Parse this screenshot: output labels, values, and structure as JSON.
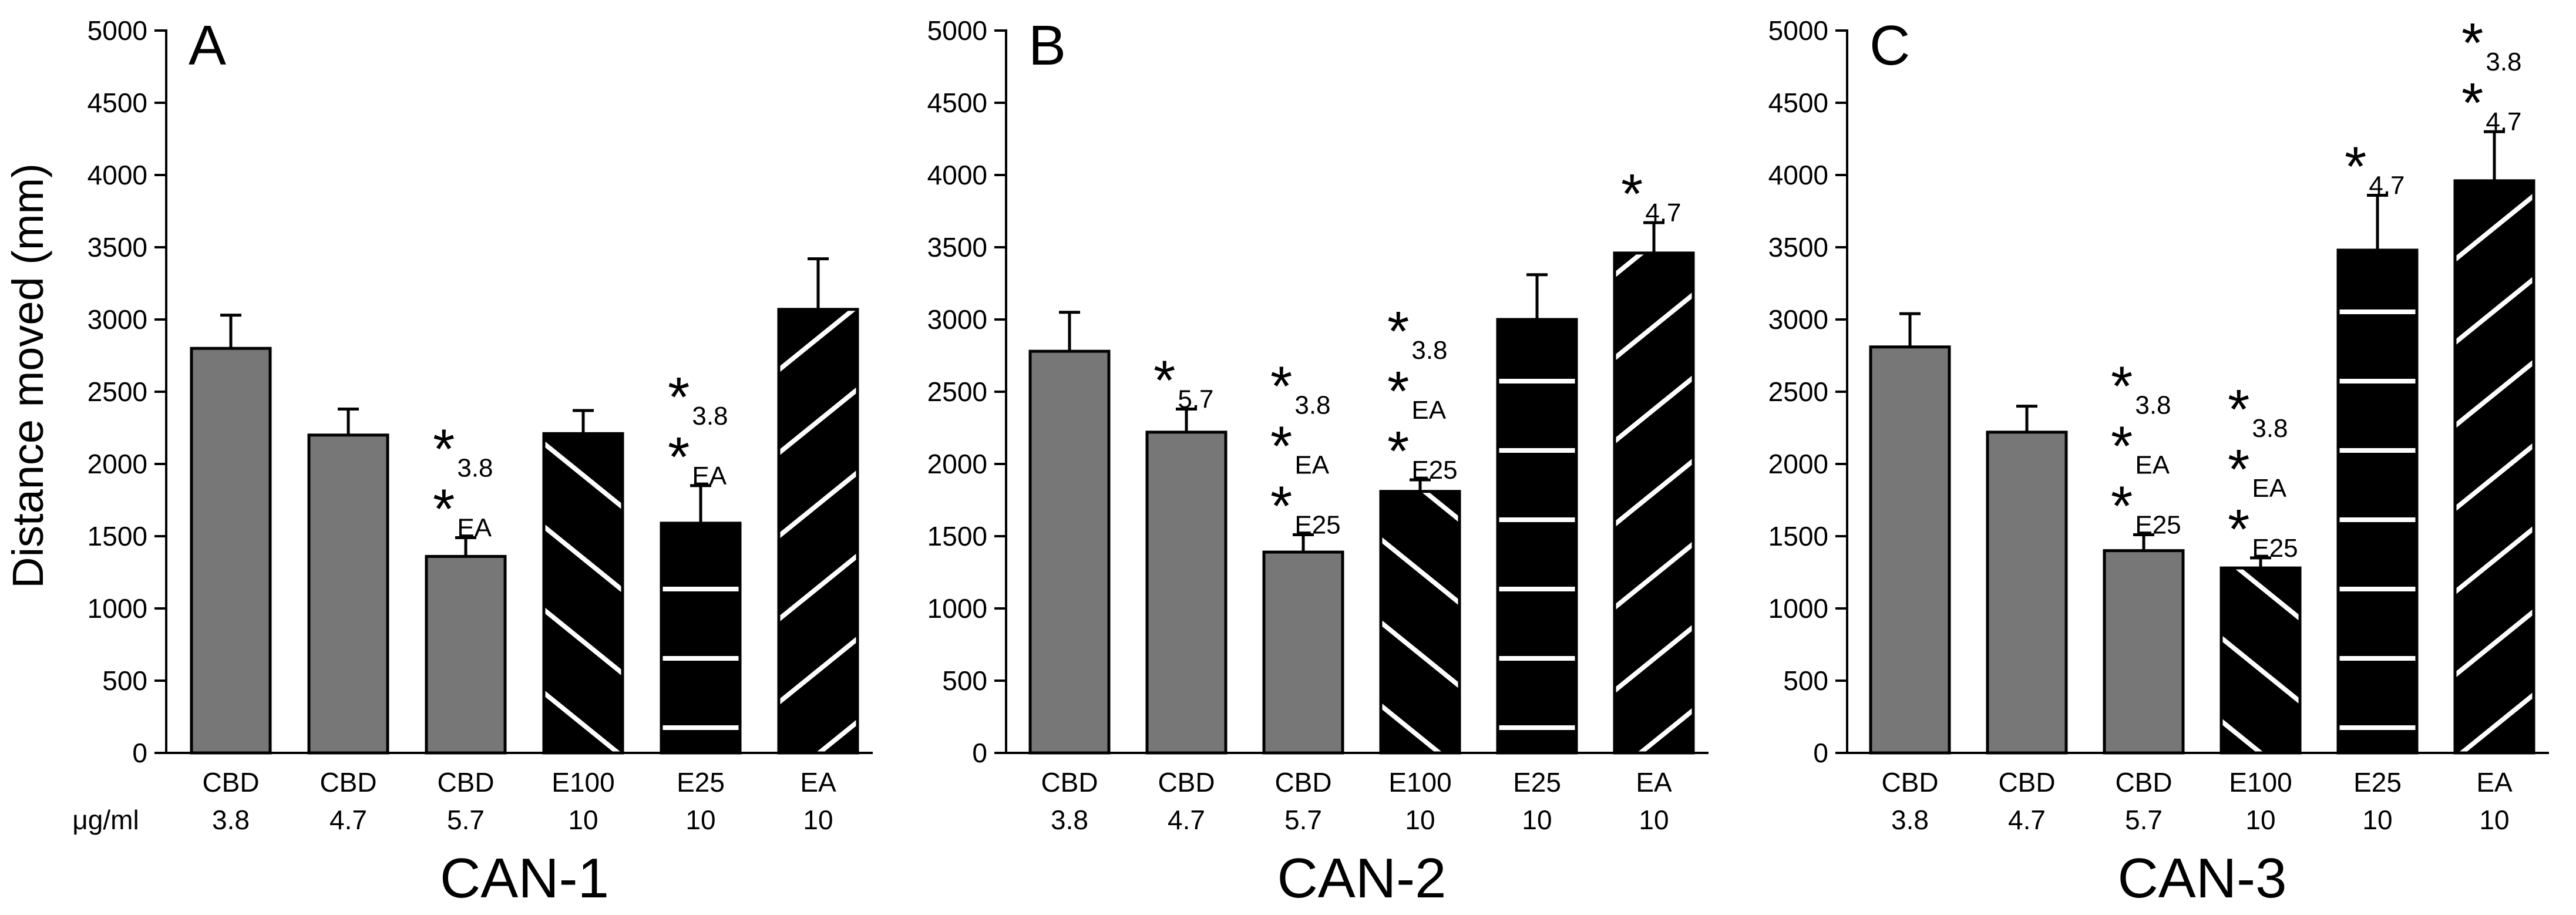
{
  "ylabel": "Distance moved (mm)",
  "xunit_label": "μg/ml",
  "colors": {
    "gray_bar": "#777777",
    "black_bar": "#000000",
    "hatch": "#ffffff",
    "axis": "#000000"
  },
  "chart_data": [
    {
      "type": "bar",
      "panel_letter": "A",
      "title": "CAN-1",
      "ylabel": "Distance moved (mm)",
      "ylim": [
        0,
        5000
      ],
      "yticks": [
        0,
        500,
        1000,
        1500,
        2000,
        2500,
        3000,
        3500,
        4000,
        4500,
        5000
      ],
      "categories": [
        {
          "line1": "CBD",
          "line2": "3.8"
        },
        {
          "line1": "CBD",
          "line2": "4.7"
        },
        {
          "line1": "CBD",
          "line2": "5.7"
        },
        {
          "line1": "E100",
          "line2": "10"
        },
        {
          "line1": "E25",
          "line2": "10"
        },
        {
          "line1": "EA",
          "line2": "10"
        }
      ],
      "values": [
        2800,
        2200,
        1360,
        2210,
        1590,
        3070
      ],
      "errors": [
        230,
        180,
        130,
        160,
        260,
        350
      ],
      "fills": [
        "gray",
        "gray",
        "gray",
        "hatch-down",
        "hatch-horizontal",
        "hatch-up"
      ],
      "annotations": [
        [],
        [],
        [
          {
            "mark": "*",
            "sub": "3.8"
          },
          {
            "mark": "*",
            "sub": "EA"
          }
        ],
        [],
        [
          {
            "mark": "*",
            "sub": "3.8"
          },
          {
            "mark": "*",
            "sub": "EA"
          }
        ],
        []
      ]
    },
    {
      "type": "bar",
      "panel_letter": "B",
      "title": "CAN-2",
      "ylabel": "",
      "ylim": [
        0,
        5000
      ],
      "yticks": [
        0,
        500,
        1000,
        1500,
        2000,
        2500,
        3000,
        3500,
        4000,
        4500,
        5000
      ],
      "categories": [
        {
          "line1": "CBD",
          "line2": "3.8"
        },
        {
          "line1": "CBD",
          "line2": "4.7"
        },
        {
          "line1": "CBD",
          "line2": "5.7"
        },
        {
          "line1": "E100",
          "line2": "10"
        },
        {
          "line1": "E25",
          "line2": "10"
        },
        {
          "line1": "EA",
          "line2": "10"
        }
      ],
      "values": [
        2780,
        2220,
        1390,
        1810,
        3000,
        3460
      ],
      "errors": [
        270,
        160,
        120,
        80,
        310,
        210
      ],
      "fills": [
        "gray",
        "gray",
        "gray",
        "hatch-down",
        "hatch-horizontal",
        "hatch-up"
      ],
      "annotations": [
        [],
        [
          {
            "mark": "*",
            "sub": "5.7"
          }
        ],
        [
          {
            "mark": "*",
            "sub": "3.8"
          },
          {
            "mark": "*",
            "sub": "EA"
          },
          {
            "mark": "*",
            "sub": "E25"
          }
        ],
        [
          {
            "mark": "*",
            "sub": "3.8"
          },
          {
            "mark": "*",
            "sub": "EA"
          },
          {
            "mark": "*",
            "sub": "E25"
          }
        ],
        [],
        [
          {
            "mark": "*",
            "sub": "4.7"
          }
        ]
      ]
    },
    {
      "type": "bar",
      "panel_letter": "C",
      "title": "CAN-3",
      "ylabel": "",
      "ylim": [
        0,
        5000
      ],
      "yticks": [
        0,
        500,
        1000,
        1500,
        2000,
        2500,
        3000,
        3500,
        4000,
        4500,
        5000
      ],
      "categories": [
        {
          "line1": "CBD",
          "line2": "3.8"
        },
        {
          "line1": "CBD",
          "line2": "4.7"
        },
        {
          "line1": "CBD",
          "line2": "5.7"
        },
        {
          "line1": "E100",
          "line2": "10"
        },
        {
          "line1": "E25",
          "line2": "10"
        },
        {
          "line1": "EA",
          "line2": "10"
        }
      ],
      "values": [
        2810,
        2220,
        1400,
        1280,
        3480,
        3960
      ],
      "errors": [
        230,
        180,
        110,
        70,
        380,
        340
      ],
      "fills": [
        "gray",
        "gray",
        "gray",
        "hatch-down",
        "hatch-horizontal",
        "hatch-up"
      ],
      "annotations": [
        [],
        [],
        [
          {
            "mark": "*",
            "sub": "3.8"
          },
          {
            "mark": "*",
            "sub": "EA"
          },
          {
            "mark": "*",
            "sub": "E25"
          }
        ],
        [
          {
            "mark": "*",
            "sub": "3.8"
          },
          {
            "mark": "*",
            "sub": "EA"
          },
          {
            "mark": "*",
            "sub": "E25"
          }
        ],
        [
          {
            "mark": "*",
            "sub": "4.7"
          }
        ],
        [
          {
            "mark": "*",
            "sub": "3.8"
          },
          {
            "mark": "*",
            "sub": "4.7"
          }
        ]
      ]
    }
  ]
}
